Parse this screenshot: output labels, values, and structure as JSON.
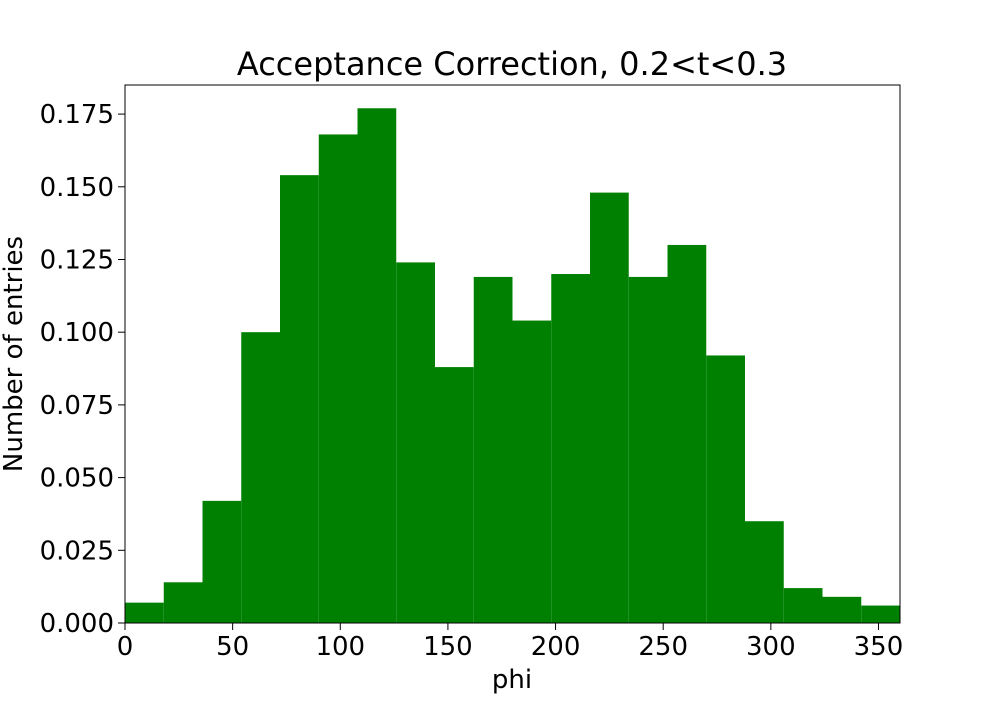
{
  "chart_data": {
    "type": "bar",
    "title": "Acceptance Correction, 0.2<t<0.3",
    "xlabel": "phi",
    "ylabel": "Number of entries",
    "xlim": [
      0,
      360
    ],
    "ylim": [
      0,
      0.185
    ],
    "bin_edges": [
      0,
      18,
      36,
      54,
      72,
      90,
      108,
      126,
      144,
      162,
      180,
      198,
      216,
      234,
      252,
      270,
      288,
      306,
      324,
      342,
      360
    ],
    "values": [
      0.007,
      0.014,
      0.042,
      0.1,
      0.154,
      0.168,
      0.177,
      0.124,
      0.088,
      0.119,
      0.104,
      0.12,
      0.148,
      0.119,
      0.13,
      0.092,
      0.035,
      0.012,
      0.009,
      0.006
    ],
    "xticks": [
      0,
      50,
      100,
      150,
      200,
      250,
      300,
      350
    ],
    "xtick_labels": [
      "0",
      "50",
      "100",
      "150",
      "200",
      "250",
      "300",
      "350"
    ],
    "yticks": [
      0,
      0.025,
      0.05,
      0.075,
      0.1,
      0.125,
      0.15,
      0.175
    ],
    "ytick_labels": [
      "0.000",
      "0.025",
      "0.050",
      "0.075",
      "0.100",
      "0.125",
      "0.150",
      "0.175"
    ],
    "bar_color": "#008000",
    "grid": false,
    "legend": "none"
  }
}
